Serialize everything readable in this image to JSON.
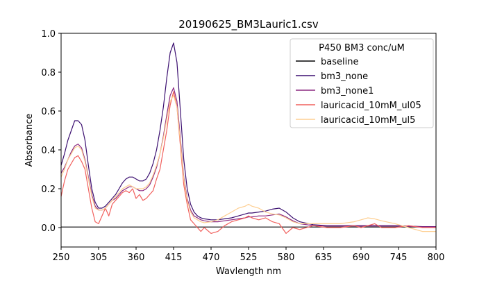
{
  "chart_data": {
    "type": "line",
    "title": "20190625_BM3Lauric1.csv",
    "xlabel": "Wavlength nm",
    "ylabel": "Absorbance",
    "xlim": [
      250,
      800
    ],
    "ylim": [
      -0.1,
      1.0
    ],
    "xticks": [
      250,
      305,
      360,
      415,
      470,
      525,
      580,
      635,
      690,
      745,
      800
    ],
    "xtick_labels": [
      "250",
      "305",
      "360",
      "415",
      "470",
      "525",
      "580",
      "635",
      "690",
      "745",
      "800"
    ],
    "yticks": [
      0.0,
      0.2,
      0.4,
      0.6,
      0.8,
      1.0
    ],
    "ytick_labels": [
      "0.0",
      "0.2",
      "0.4",
      "0.6",
      "0.8",
      "1.0"
    ],
    "grid": false,
    "legend": {
      "title": "P450 BM3 conc/uM",
      "placement": "top-right"
    },
    "x": [
      250,
      255,
      260,
      265,
      270,
      275,
      280,
      285,
      290,
      295,
      300,
      305,
      310,
      315,
      320,
      325,
      330,
      335,
      340,
      345,
      350,
      355,
      360,
      365,
      370,
      375,
      380,
      385,
      390,
      395,
      400,
      405,
      410,
      415,
      420,
      425,
      430,
      435,
      440,
      445,
      450,
      455,
      460,
      470,
      480,
      490,
      500,
      510,
      520,
      525,
      530,
      540,
      550,
      560,
      570,
      580,
      590,
      600,
      620,
      640,
      660,
      680,
      690,
      700,
      710,
      720,
      740,
      760,
      780,
      800
    ],
    "series": [
      {
        "name": "baseline",
        "color": "#000004",
        "values": [
          0.003,
          0.003,
          0.003,
          0.003,
          0.003,
          0.003,
          0.003,
          0.003,
          0.003,
          0.003,
          0.003,
          0.003,
          0.003,
          0.003,
          0.003,
          0.003,
          0.003,
          0.003,
          0.003,
          0.003,
          0.003,
          0.003,
          0.003,
          0.003,
          0.003,
          0.003,
          0.003,
          0.003,
          0.003,
          0.003,
          0.003,
          0.003,
          0.003,
          0.003,
          0.003,
          0.003,
          0.003,
          0.003,
          0.003,
          0.003,
          0.003,
          0.003,
          0.003,
          0.003,
          0.003,
          0.003,
          0.003,
          0.003,
          0.003,
          0.003,
          0.003,
          0.003,
          0.003,
          0.003,
          0.003,
          0.003,
          0.003,
          0.003,
          0.003,
          0.003,
          0.003,
          0.003,
          0.003,
          0.003,
          0.003,
          0.003,
          0.003,
          0.003,
          0.003,
          0.003
        ]
      },
      {
        "name": "bm3_none",
        "color": "#3b0f70",
        "values": [
          0.32,
          0.38,
          0.45,
          0.5,
          0.55,
          0.55,
          0.53,
          0.45,
          0.32,
          0.2,
          0.13,
          0.1,
          0.1,
          0.11,
          0.13,
          0.15,
          0.17,
          0.2,
          0.23,
          0.25,
          0.26,
          0.26,
          0.25,
          0.24,
          0.24,
          0.25,
          0.28,
          0.33,
          0.4,
          0.5,
          0.62,
          0.77,
          0.9,
          0.95,
          0.85,
          0.6,
          0.35,
          0.2,
          0.12,
          0.08,
          0.06,
          0.05,
          0.045,
          0.04,
          0.04,
          0.045,
          0.05,
          0.06,
          0.07,
          0.075,
          0.075,
          0.08,
          0.085,
          0.095,
          0.1,
          0.08,
          0.05,
          0.03,
          0.015,
          0.01,
          0.01,
          0.01,
          0.01,
          0.01,
          0.01,
          0.01,
          0.01,
          0.008,
          0.005,
          0.005
        ]
      },
      {
        "name": "bm3_none1",
        "color": "#8c2981",
        "values": [
          0.28,
          0.31,
          0.35,
          0.39,
          0.42,
          0.43,
          0.41,
          0.35,
          0.26,
          0.17,
          0.11,
          0.09,
          0.09,
          0.1,
          0.12,
          0.14,
          0.15,
          0.17,
          0.19,
          0.2,
          0.21,
          0.21,
          0.2,
          0.19,
          0.19,
          0.2,
          0.22,
          0.26,
          0.31,
          0.38,
          0.47,
          0.58,
          0.68,
          0.72,
          0.65,
          0.46,
          0.26,
          0.15,
          0.09,
          0.06,
          0.05,
          0.04,
          0.035,
          0.03,
          0.03,
          0.035,
          0.04,
          0.045,
          0.05,
          0.055,
          0.055,
          0.06,
          0.06,
          0.065,
          0.07,
          0.055,
          0.035,
          0.02,
          0.01,
          0.008,
          0.008,
          0.008,
          0.008,
          0.008,
          0.008,
          0.008,
          0.008,
          0.006,
          0.004,
          0.004
        ]
      },
      {
        "name": "lauricacid_10mM_ul05",
        "color": "#f1605d",
        "values": [
          0.16,
          0.24,
          0.3,
          0.33,
          0.36,
          0.37,
          0.34,
          0.3,
          0.2,
          0.1,
          0.03,
          0.02,
          0.06,
          0.1,
          0.06,
          0.12,
          0.14,
          0.16,
          0.18,
          0.19,
          0.18,
          0.2,
          0.15,
          0.17,
          0.14,
          0.15,
          0.17,
          0.19,
          0.25,
          0.3,
          0.4,
          0.5,
          0.63,
          0.7,
          0.62,
          0.42,
          0.22,
          0.12,
          0.04,
          0.02,
          0.0,
          -0.02,
          0.0,
          -0.03,
          -0.02,
          0.01,
          0.03,
          0.04,
          0.05,
          0.06,
          0.05,
          0.04,
          0.05,
          0.03,
          0.02,
          -0.03,
          0.0,
          -0.01,
          0.01,
          0.0,
          0.0,
          0.01,
          0.0,
          0.01,
          0.02,
          0.0,
          0.0,
          0.01,
          0.0,
          0.0
        ]
      },
      {
        "name": "lauricacid_10mM_ul5",
        "color": "#fecf92",
        "values": [
          0.26,
          0.3,
          0.35,
          0.38,
          0.41,
          0.42,
          0.4,
          0.34,
          0.25,
          0.16,
          0.1,
          0.09,
          0.09,
          0.1,
          0.12,
          0.14,
          0.16,
          0.18,
          0.2,
          0.21,
          0.22,
          0.21,
          0.2,
          0.2,
          0.2,
          0.21,
          0.23,
          0.27,
          0.32,
          0.38,
          0.46,
          0.56,
          0.65,
          0.68,
          0.62,
          0.44,
          0.25,
          0.14,
          0.08,
          0.05,
          0.04,
          0.03,
          0.025,
          0.03,
          0.04,
          0.06,
          0.08,
          0.1,
          0.11,
          0.12,
          0.11,
          0.1,
          0.08,
          0.07,
          0.065,
          0.05,
          0.03,
          0.02,
          0.02,
          0.02,
          0.02,
          0.03,
          0.04,
          0.05,
          0.045,
          0.035,
          0.02,
          0.0,
          -0.02,
          -0.02
        ]
      }
    ]
  }
}
